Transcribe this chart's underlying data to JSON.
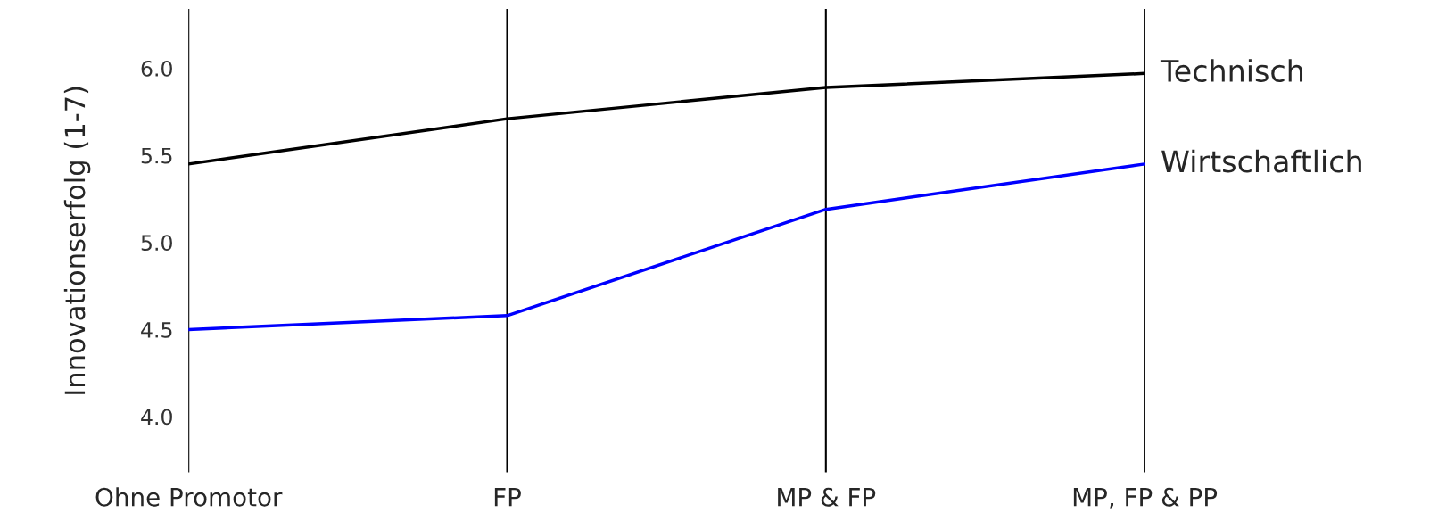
{
  "chart_data": {
    "type": "line",
    "ylabel": "Innovationserfolg (1-7)",
    "categories": [
      "Ohne Promotor",
      "FP",
      "MP & FP",
      "MP, FP & PP"
    ],
    "series": [
      {
        "name": "Technisch",
        "color": "#000000",
        "values": [
          5.45,
          5.71,
          5.89,
          5.97
        ]
      },
      {
        "name": "Wirtschaftlich",
        "color": "#0000ff",
        "values": [
          4.5,
          4.58,
          5.19,
          5.45
        ]
      }
    ],
    "ylim": [
      3.68,
      6.34
    ],
    "yticks": [
      {
        "value": 4,
        "label": "4.0"
      },
      {
        "value": 4.5,
        "label": "4.5"
      },
      {
        "value": 5,
        "label": "5.0"
      },
      {
        "value": 5.5,
        "label": "5.5"
      },
      {
        "value": 6,
        "label": "6.0"
      }
    ],
    "grid": "x",
    "legend": false,
    "marker": "none",
    "line_style": "solid"
  }
}
